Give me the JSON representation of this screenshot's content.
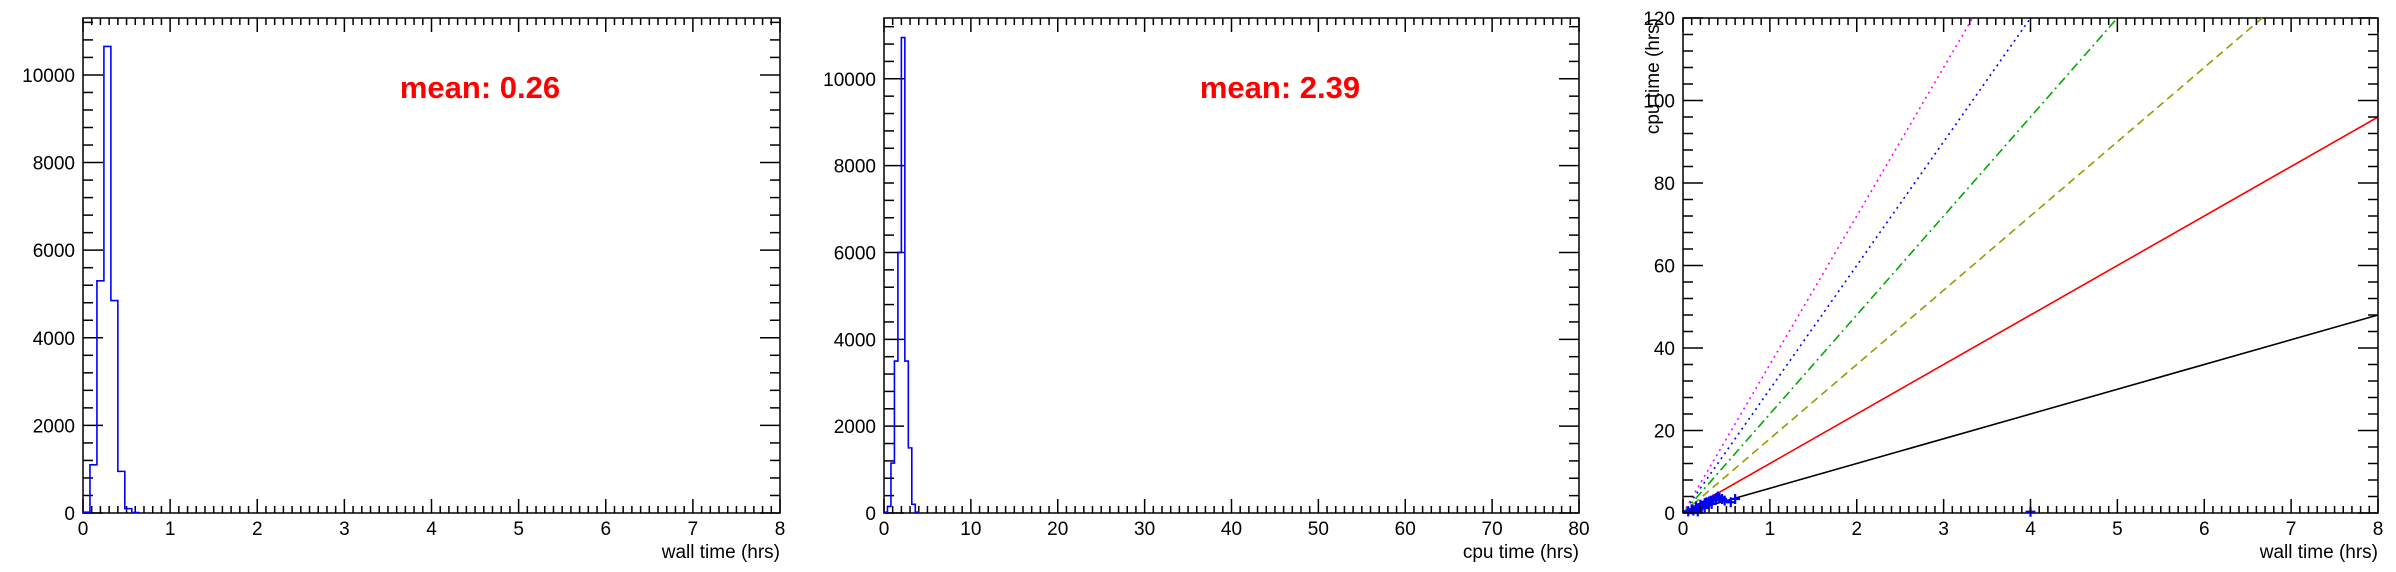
{
  "chart_data": [
    {
      "type": "histogram",
      "xlabel": "wall time (hrs)",
      "ylabel": "",
      "xlim": [
        0,
        8
      ],
      "ylim": [
        0,
        11300
      ],
      "xticks": [
        0,
        1,
        2,
        3,
        4,
        5,
        6,
        7,
        8
      ],
      "yticks": [
        0,
        2000,
        4000,
        6000,
        8000,
        10000
      ],
      "bin_width": 0.08,
      "bin_start": 0,
      "counts": [
        20,
        1100,
        5300,
        10650,
        4850,
        950,
        100,
        10
      ],
      "annotation": "mean: 0.26",
      "annotation_color": "#ff0000",
      "line_color": "#0000ff"
    },
    {
      "type": "histogram",
      "xlabel": "cpu time (hrs)",
      "ylabel": "",
      "xlim": [
        0,
        80
      ],
      "ylim": [
        0,
        11400
      ],
      "xticks": [
        0,
        10,
        20,
        30,
        40,
        50,
        60,
        70,
        80
      ],
      "yticks": [
        0,
        2000,
        4000,
        6000,
        8000,
        10000
      ],
      "bin_width": 0.4,
      "bin_start": 0,
      "counts": [
        20,
        150,
        1150,
        3500,
        6000,
        10950,
        3500,
        1500,
        200,
        20
      ],
      "annotation": "mean: 2.39",
      "annotation_color": "#ff0000",
      "line_color": "#0000ff"
    },
    {
      "type": "scatter",
      "xlabel": "wall time (hrs)",
      "ylabel": "cpu time (hrs)",
      "xlim": [
        0,
        8
      ],
      "ylim": [
        0,
        120
      ],
      "xticks": [
        0,
        1,
        2,
        3,
        4,
        5,
        6,
        7,
        8
      ],
      "yticks": [
        0,
        20,
        40,
        60,
        80,
        100,
        120
      ],
      "series": [
        {
          "values": [
            [
              0.06,
              0.4
            ],
            [
              0.1,
              0.9
            ],
            [
              0.12,
              0.6
            ],
            [
              0.15,
              1.6
            ],
            [
              0.18,
              1.2
            ],
            [
              0.2,
              2.0
            ],
            [
              0.22,
              1.8
            ],
            [
              0.25,
              2.4
            ],
            [
              0.27,
              2.6
            ],
            [
              0.3,
              2.8
            ],
            [
              0.32,
              3.0
            ],
            [
              0.35,
              3.3
            ],
            [
              0.38,
              3.6
            ],
            [
              0.4,
              4.0
            ],
            [
              0.42,
              3.7
            ],
            [
              0.45,
              3.4
            ],
            [
              0.48,
              3.0
            ],
            [
              0.55,
              2.6
            ],
            [
              0.6,
              3.4
            ],
            [
              0.17,
              0.4
            ],
            [
              0.25,
              1.2
            ],
            [
              0.33,
              2.2
            ],
            [
              4.0,
              0.3
            ]
          ],
          "color": "#0000ff"
        }
      ],
      "reference_lines": [
        {
          "slope": 6,
          "color": "#000000",
          "dash": "solid"
        },
        {
          "slope": 12,
          "color": "#ff0000",
          "dash": "solid"
        },
        {
          "slope": 18,
          "color": "#999900",
          "dash": "dashed"
        },
        {
          "slope": 24,
          "color": "#00aa00",
          "dash": "dashdot"
        },
        {
          "slope": 30,
          "color": "#0000ff",
          "dash": "dotted"
        },
        {
          "slope": 36,
          "color": "#ff00ff",
          "dash": "dotted"
        }
      ]
    }
  ]
}
